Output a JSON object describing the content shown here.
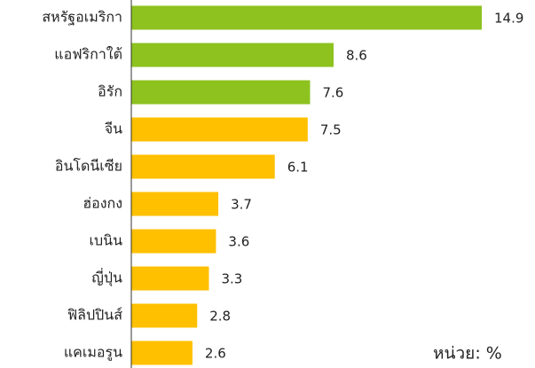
{
  "chart_data": {
    "type": "barh",
    "categories": [
      "สหรัฐอเมริกา",
      "แอฟริกาใต้",
      "อิรัก",
      "จีน",
      "อินโดนีเซีย",
      "ฮ่องกง",
      "เบนิน",
      "ญี่ปุ่น",
      "ฟิลิปปินส์",
      "แคเมอรูน"
    ],
    "values": [
      14.9,
      8.6,
      7.6,
      7.5,
      6.1,
      3.7,
      3.6,
      3.3,
      2.8,
      2.6
    ],
    "colors": [
      "#8dc21f",
      "#8dc21f",
      "#8dc21f",
      "#ffc000",
      "#ffc000",
      "#ffc000",
      "#ffc000",
      "#ffc000",
      "#ffc000",
      "#ffc000"
    ],
    "xlim": [
      0,
      15
    ],
    "annotation": "หน่วย: %"
  }
}
